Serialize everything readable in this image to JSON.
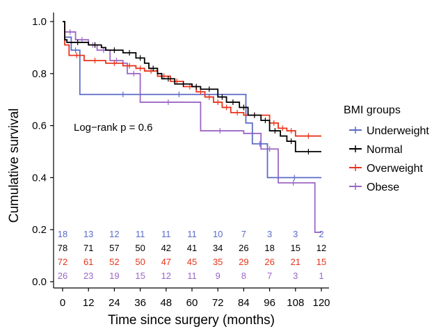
{
  "chart_data": {
    "type": "line",
    "xlabel": "Time since surgery (months)",
    "ylabel": "Cumulative survival",
    "xlim": [
      0,
      120
    ],
    "ylim": [
      0,
      1.0
    ],
    "xticks": [
      0,
      12,
      24,
      36,
      48,
      60,
      72,
      84,
      96,
      108,
      120
    ],
    "yticks": [
      0.0,
      0.2,
      0.4,
      0.6,
      0.8,
      1.0
    ],
    "ytick_labels": [
      "0.0",
      "0.2",
      "0.4",
      "0.6",
      "0.8",
      "1.0"
    ],
    "grid": false,
    "annotation": "Log−rank   p = 0.6",
    "legend": {
      "title": "BMI groups",
      "position": "right"
    },
    "series": [
      {
        "name": "Underweight",
        "color": "#5b6bc8",
        "steps": [
          [
            0,
            1.0
          ],
          [
            1,
            0.94
          ],
          [
            4,
            0.89
          ],
          [
            8,
            0.72
          ],
          [
            48,
            0.72
          ],
          [
            60,
            0.72
          ],
          [
            84,
            0.72
          ],
          [
            85,
            0.61
          ],
          [
            88,
            0.53
          ],
          [
            95,
            0.4
          ],
          [
            120,
            0.4
          ]
        ],
        "risk": [
          18,
          13,
          12,
          11,
          11,
          11,
          10,
          7,
          3,
          3,
          2
        ]
      },
      {
        "name": "Normal",
        "color": "#000000",
        "steps": [
          [
            0,
            1.0
          ],
          [
            1,
            0.93
          ],
          [
            2,
            0.92
          ],
          [
            12,
            0.91
          ],
          [
            18,
            0.9
          ],
          [
            20,
            0.89
          ],
          [
            28,
            0.88
          ],
          [
            34,
            0.86
          ],
          [
            38,
            0.84
          ],
          [
            40,
            0.82
          ],
          [
            44,
            0.8
          ],
          [
            46,
            0.78
          ],
          [
            52,
            0.76
          ],
          [
            60,
            0.75
          ],
          [
            64,
            0.74
          ],
          [
            72,
            0.71
          ],
          [
            76,
            0.69
          ],
          [
            82,
            0.67
          ],
          [
            86,
            0.64
          ],
          [
            92,
            0.62
          ],
          [
            96,
            0.58
          ],
          [
            101,
            0.56
          ],
          [
            104,
            0.54
          ],
          [
            108,
            0.5
          ],
          [
            120,
            0.5
          ]
        ],
        "risk": [
          78,
          71,
          57,
          50,
          42,
          41,
          34,
          26,
          18,
          15,
          12
        ]
      },
      {
        "name": "Overweight",
        "color": "#e8341c",
        "steps": [
          [
            0,
            1.0
          ],
          [
            1,
            0.91
          ],
          [
            3,
            0.87
          ],
          [
            10,
            0.85
          ],
          [
            20,
            0.84
          ],
          [
            28,
            0.83
          ],
          [
            34,
            0.82
          ],
          [
            38,
            0.81
          ],
          [
            44,
            0.79
          ],
          [
            50,
            0.77
          ],
          [
            56,
            0.75
          ],
          [
            62,
            0.73
          ],
          [
            66,
            0.71
          ],
          [
            70,
            0.69
          ],
          [
            74,
            0.67
          ],
          [
            78,
            0.65
          ],
          [
            84,
            0.64
          ],
          [
            94,
            0.64
          ],
          [
            96,
            0.61
          ],
          [
            100,
            0.59
          ],
          [
            104,
            0.58
          ],
          [
            108,
            0.56
          ],
          [
            120,
            0.56
          ]
        ],
        "risk": [
          72,
          61,
          52,
          50,
          47,
          45,
          35,
          29,
          26,
          21,
          15
        ]
      },
      {
        "name": "Obese",
        "color": "#9b66c4",
        "steps": [
          [
            0,
            1.0
          ],
          [
            1,
            0.96
          ],
          [
            6,
            0.93
          ],
          [
            12,
            0.91
          ],
          [
            16,
            0.89
          ],
          [
            22,
            0.85
          ],
          [
            28,
            0.84
          ],
          [
            30,
            0.8
          ],
          [
            36,
            0.69
          ],
          [
            62,
            0.69
          ],
          [
            64,
            0.58
          ],
          [
            82,
            0.58
          ],
          [
            84,
            0.57
          ],
          [
            92,
            0.51
          ],
          [
            100,
            0.38
          ],
          [
            114,
            0.38
          ],
          [
            117,
            0.19
          ],
          [
            120,
            0.19
          ]
        ],
        "risk": [
          26,
          23,
          19,
          15,
          12,
          11,
          9,
          8,
          7,
          3,
          1
        ]
      }
    ]
  }
}
